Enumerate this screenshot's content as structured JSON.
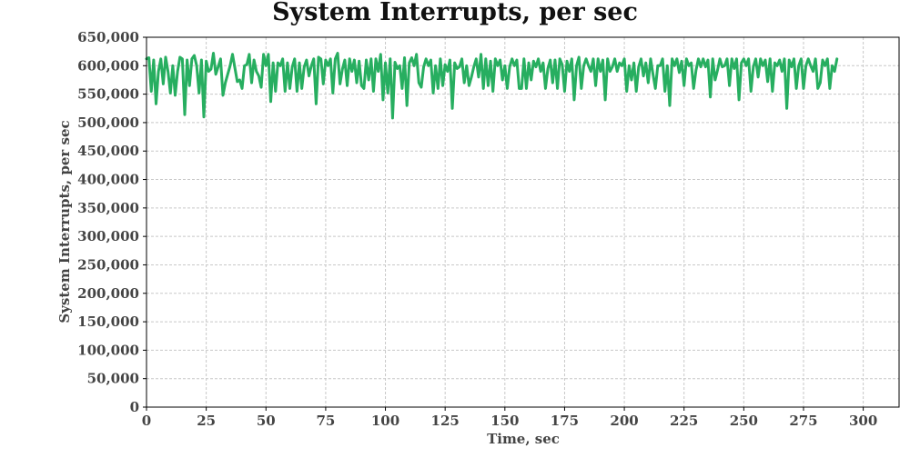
{
  "chart_data": {
    "type": "line",
    "title": "System Interrupts, per sec",
    "xlabel": "Time, sec",
    "ylabel": "System Interrupts, per sec",
    "xlim": [
      0,
      315
    ],
    "ylim": [
      0,
      650000
    ],
    "x_ticks": [
      0,
      25,
      50,
      75,
      100,
      125,
      150,
      175,
      200,
      225,
      250,
      275,
      300
    ],
    "x_tick_labels": [
      "0",
      "25",
      "50",
      "75",
      "100",
      "125",
      "150",
      "175",
      "200",
      "225",
      "250",
      "275",
      "300"
    ],
    "y_ticks": [
      0,
      50000,
      100000,
      150000,
      200000,
      250000,
      300000,
      350000,
      400000,
      450000,
      500000,
      550000,
      600000,
      650000
    ],
    "y_tick_labels": [
      "0",
      "50,000",
      "100,000",
      "150,000",
      "200,000",
      "250,000",
      "300,000",
      "350,000",
      "400,000",
      "450,000",
      "500,000",
      "550,000",
      "600,000",
      "650,000"
    ],
    "grid": true,
    "legend": "none",
    "colors": {
      "series": "#27ae60",
      "grid": "#c8c8c8",
      "axis": "#000000",
      "text": "#444444"
    },
    "series": [
      {
        "x_start": 0,
        "x_step": 1,
        "values": [
          612000,
          614000,
          555000,
          610000,
          533000,
          590000,
          612000,
          568000,
          615000,
          590000,
          552000,
          600000,
          548000,
          590000,
          615000,
          612000,
          514000,
          610000,
          565000,
          612000,
          618000,
          600000,
          552000,
          610000,
          510000,
          608000,
          590000,
          594000,
          622000,
          585000,
          598000,
          612000,
          548000,
          570000,
          585000,
          600000,
          620000,
          596000,
          572000,
          575000,
          560000,
          600000,
          602000,
          620000,
          570000,
          610000,
          590000,
          582000,
          562000,
          620000,
          600000,
          620000,
          537000,
          605000,
          555000,
          605000,
          600000,
          612000,
          555000,
          605000,
          560000,
          598000,
          612000,
          555000,
          605000,
          560000,
          598000,
          610000,
          582000,
          600000,
          612000,
          533000,
          615000,
          612000,
          568000,
          610000,
          600000,
          612000,
          552000,
          612000,
          622000,
          568000,
          594000,
          610000,
          565000,
          612000,
          590000,
          610000,
          570000,
          608000,
          565000,
          560000,
          610000,
          575000,
          612000,
          555000,
          612000,
          590000,
          620000,
          540000,
          605000,
          552000,
          612000,
          508000,
          606000,
          595000,
          600000,
          560000,
          614000,
          530000,
          605000,
          614000,
          600000,
          620000,
          570000,
          562000,
          598000,
          612000,
          600000,
          610000,
          552000,
          600000,
          560000,
          612000,
          565000,
          602000,
          590000,
          610000,
          525000,
          605000,
          595000,
          598000,
          612000,
          570000,
          600000,
          565000,
          580000,
          598000,
          612000,
          580000,
          620000,
          560000,
          612000,
          565000,
          608000,
          555000,
          612000,
          600000,
          610000,
          575000,
          600000,
          560000,
          598000,
          612000,
          600000,
          610000,
          560000,
          560000,
          612000,
          560000,
          605000,
          575000,
          608000,
          598000,
          612000,
          590000,
          605000,
          560000,
          595000,
          610000,
          570000,
          610000,
          560000,
          612000,
          602000,
          555000,
          608000,
          590000,
          612000,
          540000,
          600000,
          615000,
          560000,
          600000,
          612000,
          600000,
          590000,
          612000,
          565000,
          612000,
          590000,
          610000,
          540000,
          612000,
          590000,
          598000,
          612000,
          590000,
          605000,
          600000,
          612000,
          555000,
          600000,
          575000,
          605000,
          555000,
          598000,
          612000,
          582000,
          605000,
          570000,
          612000,
          585000,
          560000,
          600000,
          600000,
          612000,
          555000,
          600000,
          530000,
          612000,
          600000,
          612000,
          588000,
          608000,
          565000,
          612000,
          600000,
          605000,
          560000,
          592000,
          612000,
          598000,
          612000,
          598000,
          610000,
          545000,
          612000,
          575000,
          592000,
          612000,
          598000,
          600000,
          612000,
          565000,
          612000,
          595000,
          612000,
          540000,
          605000,
          612000,
          600000,
          612000,
          555000,
          598000,
          612000,
          580000,
          612000,
          600000,
          610000,
          572000,
          612000,
          555000,
          605000,
          600000,
          610000,
          590000,
          612000,
          525000,
          610000,
          598000,
          612000,
          560000,
          600000,
          612000,
          560000,
          600000,
          612000,
          600000,
          590000,
          612000,
          560000,
          570000,
          610000,
          600000,
          612000,
          560000,
          600000,
          590000,
          612000
        ]
      }
    ]
  }
}
